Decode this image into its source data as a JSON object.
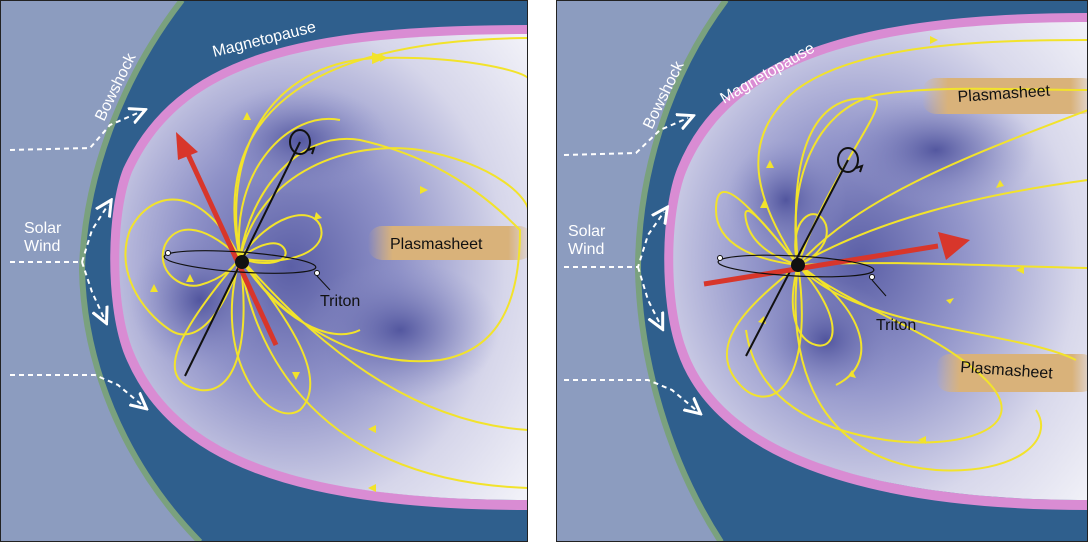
{
  "panels": [
    {
      "id": "left",
      "labels": {
        "bowshock": "Bowshock",
        "magnetopause": "Magnetopause",
        "solar_wind_line1": "Solar",
        "solar_wind_line2": "Wind",
        "plasmasheet": "Plasmasheet",
        "triton": "Triton"
      }
    },
    {
      "id": "right",
      "labels": {
        "bowshock": "Bowshock",
        "magnetopause": "Magnetopause",
        "solar_wind_line1": "Solar",
        "solar_wind_line2": "Wind",
        "plasmasheet_upper": "Plasmasheet",
        "plasmasheet_lower": "Plasmasheet",
        "triton": "Triton"
      }
    }
  ],
  "colors": {
    "solar_wind_region": "#8c9cbf",
    "bowshock": "#7aa17e",
    "magnetosheath": "#2f5f8d",
    "magnetopause_glow": "#d98cd3",
    "field_lines": "#f2e32b",
    "magnetic_axis_arrow": "#d8362b",
    "plasmasheet_band": "#d9b27a"
  },
  "icons": [
    "rotation-arrow-icon",
    "planet-icon",
    "dashed-flow-arrow-icon"
  ]
}
